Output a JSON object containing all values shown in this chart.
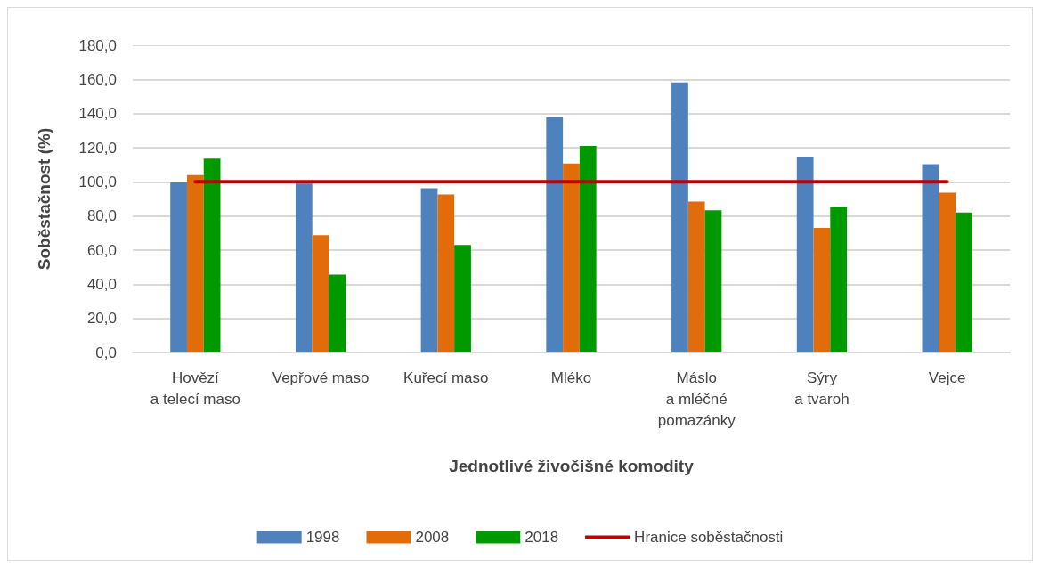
{
  "chart_data": {
    "type": "bar",
    "xlabel": "Jednotlivé živočišné komodity",
    "ylabel": "Soběstačnost (%)",
    "categories": [
      "Hovězí\na telecí maso",
      "Vepřové maso",
      "Kuřecí maso",
      "Mléko",
      "Máslo\na mléčné\npomazánky",
      "Sýry\na tvaroh",
      "Vejce"
    ],
    "series": [
      {
        "name": "1998",
        "color": "#4f81bd",
        "values": [
          99.7,
          99,
          96.2,
          137.9,
          158.2,
          114.8,
          110.3
        ]
      },
      {
        "name": "2008",
        "color": "#e36c0a",
        "values": [
          104,
          68.8,
          92.6,
          110.8,
          88.4,
          73.1,
          93.6
        ]
      },
      {
        "name": "2018",
        "color": "#009900",
        "values": [
          113.6,
          45.7,
          63,
          121.1,
          83.4,
          85.4,
          82.1
        ]
      },
      {
        "name": "Hranice soběstačnosti",
        "type": "line",
        "color": "#c00000",
        "values": [
          100,
          100,
          100,
          100,
          100,
          100,
          100
        ]
      }
    ],
    "ylim": [
      0,
      180
    ],
    "yticks": [
      {
        "value": 0,
        "label": "0,0"
      },
      {
        "value": 20,
        "label": "20,0"
      },
      {
        "value": 40,
        "label": "40,0"
      },
      {
        "value": 60,
        "label": "60,0"
      },
      {
        "value": 80,
        "label": "80,0"
      },
      {
        "value": 100,
        "label": "100,0"
      },
      {
        "value": 120,
        "label": "120,0"
      },
      {
        "value": 140,
        "label": "140,0"
      },
      {
        "value": 160,
        "label": "160,0"
      },
      {
        "value": 180,
        "label": "180,0"
      }
    ],
    "grid": "y",
    "legend": "bottom",
    "marker": "none"
  }
}
